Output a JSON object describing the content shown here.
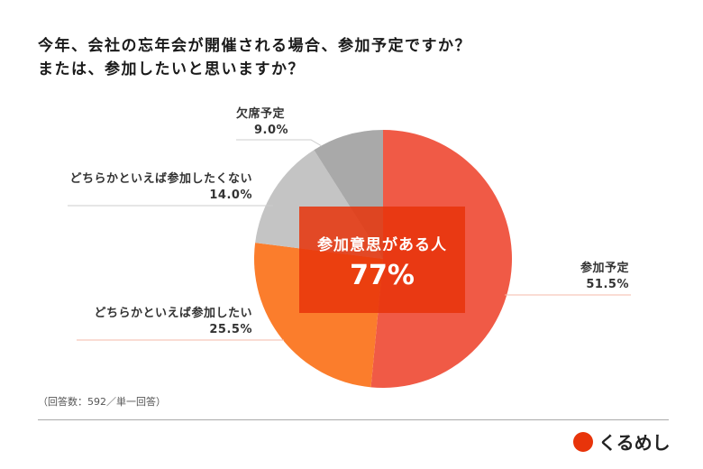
{
  "title_line1": "今年、会社の忘年会が開催される場合、参加予定ですか？",
  "title_line2": "または、参加したいと思いますか？",
  "chart_data": {
    "type": "pie",
    "title": "今年、会社の忘年会が開催される場合、参加予定ですか？ または、参加したいと思いますか？",
    "categories": [
      "参加予定",
      "どちらかといえば参加したい",
      "どちらかといえば参加したくない",
      "欠席予定"
    ],
    "values": [
      51.5,
      25.5,
      14.0,
      9.0
    ],
    "value_labels": [
      "51.5%",
      "25.5%",
      "14.0%",
      "9.0%"
    ],
    "colors": [
      "#f05a46",
      "#fb7d2c",
      "#c4c4c4",
      "#a9a9a9"
    ],
    "start": "12 o'clock, clockwise",
    "callout": {
      "label": "参加意思がある人",
      "value": "77%"
    }
  },
  "note": "（回答数：592／単一回答）",
  "logo_text": "くるめし"
}
